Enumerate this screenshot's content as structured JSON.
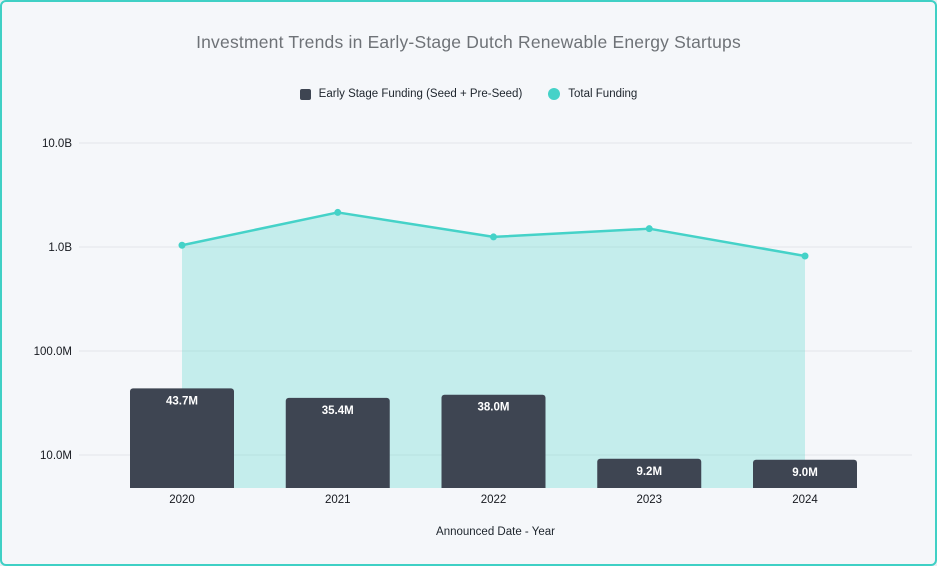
{
  "frame": {
    "border_color": "#3fd0c5",
    "background": "#f5f7fa",
    "gridline_color": "#e3e6ea"
  },
  "chart_data": {
    "type": "combo-bar-line-area",
    "title": "Investment Trends in Early-Stage Dutch Renewable Energy Startups",
    "xlabel": "Announced Date - Year",
    "y_scale": "log",
    "grid": true,
    "legend_position": "top",
    "categories": [
      "2020",
      "2021",
      "2022",
      "2023",
      "2024"
    ],
    "series": [
      {
        "name": "Early Stage Funding (Seed + Pre-Seed)",
        "type": "bar",
        "color": "#3e4552",
        "label_color": "#ffffff",
        "values": [
          43700000,
          35400000,
          38000000,
          9200000,
          9000000
        ],
        "labels": [
          "43.7M",
          "35.4M",
          "38.0M",
          "9.2M",
          "9.0M"
        ]
      },
      {
        "name": "Total Funding",
        "type": "line-area",
        "color": "#45d2c8",
        "area_fill": "rgba(69,211,201,0.28)",
        "values": [
          1040000000,
          2150000000,
          1250000000,
          1500000000,
          820000000
        ]
      }
    ],
    "yticks": [
      {
        "label": "10.0B",
        "value": 10000000000
      },
      {
        "label": "1.0B",
        "value": 1000000000
      },
      {
        "label": "100.0M",
        "value": 100000000
      },
      {
        "label": "10.0M",
        "value": 10000000
      }
    ],
    "tick_label_color": "#16191f",
    "axis_title_color": "#1d242c",
    "title_color": "#6e7277"
  }
}
